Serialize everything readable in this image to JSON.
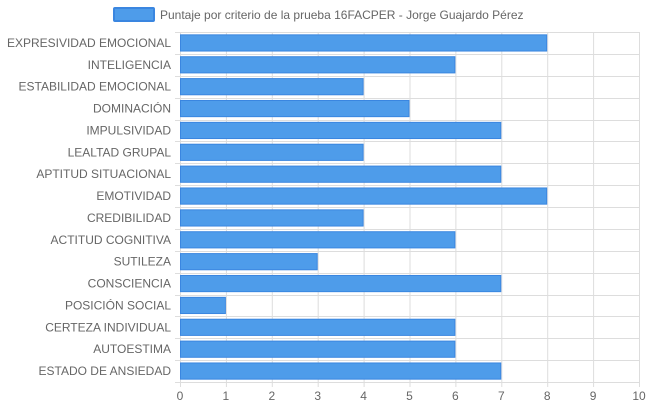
{
  "chart_data": {
    "type": "bar",
    "orientation": "horizontal",
    "categories": [
      "EXPRESIVIDAD EMOCIONAL",
      "INTELIGENCIA",
      "ESTABILIDAD EMOCIONAL",
      "DOMINACIÓN",
      "IMPULSIVIDAD",
      "LEALTAD GRUPAL",
      "APTITUD SITUACIONAL",
      "EMOTIVIDAD",
      "CREDIBILIDAD",
      "ACTITUD COGNITIVA",
      "SUTILEZA",
      "CONSCIENCIA",
      "POSICIÓN SOCIAL",
      "CERTEZA INDIVIDUAL",
      "AUTOESTIMA",
      "ESTADO DE ANSIEDAD"
    ],
    "series": [
      {
        "name": "Puntaje por criterio de la prueba 16FACPER - Jorge Guajardo Pérez",
        "values": [
          8,
          6,
          4,
          5,
          7,
          4,
          7,
          8,
          4,
          6,
          3,
          7,
          1,
          6,
          6,
          7
        ]
      }
    ],
    "x_ticks": [
      "0",
      "1",
      "2",
      "3",
      "4",
      "5",
      "6",
      "7",
      "8",
      "9",
      "10"
    ],
    "xlim": [
      0,
      10
    ],
    "grid": true,
    "legend_position": "top",
    "colors": {
      "bar_fill": "#4e9cea",
      "bar_stroke": "#3a86e0",
      "grid": "#dddddd"
    }
  }
}
